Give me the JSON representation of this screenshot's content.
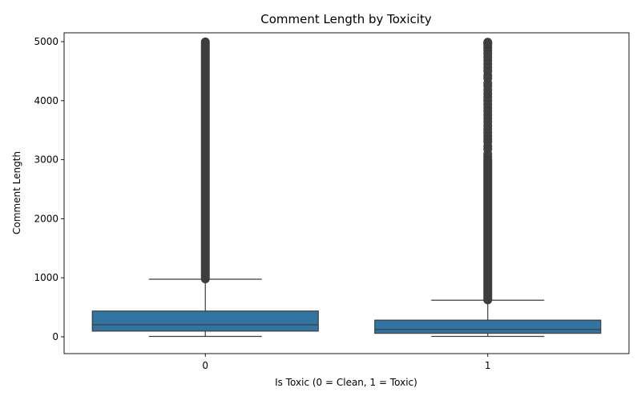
{
  "chart_data": {
    "type": "box",
    "title": "Comment Length by Toxicity",
    "xlabel": "Is Toxic (0 = Clean, 1 = Toxic)",
    "ylabel": "Comment Length",
    "categories": [
      "0",
      "1"
    ],
    "ylim": [
      -285,
      5150
    ],
    "yticks": [
      0,
      1000,
      2000,
      3000,
      4000,
      5000
    ],
    "grid": false,
    "box_color": "#3274a1",
    "line_color": "#3d3d3d",
    "boxes": [
      {
        "category": "0",
        "whisker_low": 6,
        "q1": 96,
        "median": 205,
        "q3": 436,
        "whisker_high": 975,
        "outliers_dense_range": [
          980,
          4995
        ],
        "outliers": []
      },
      {
        "category": "1",
        "whisker_low": 6,
        "q1": 59,
        "median": 123,
        "q3": 282,
        "whisker_high": 620,
        "outliers_dense_range": [
          625,
          3000
        ],
        "outliers": [
          3050,
          3100,
          3180,
          3230,
          3300,
          3350,
          3400,
          3460,
          3520,
          3580,
          3640,
          3700,
          3760,
          3820,
          3880,
          3940,
          4000,
          4060,
          4120,
          4180,
          4250,
          4300,
          4380,
          4430,
          4500,
          4560,
          4620,
          4680,
          4740,
          4800,
          4850,
          4900,
          4950,
          4975,
          4990
        ]
      }
    ]
  }
}
